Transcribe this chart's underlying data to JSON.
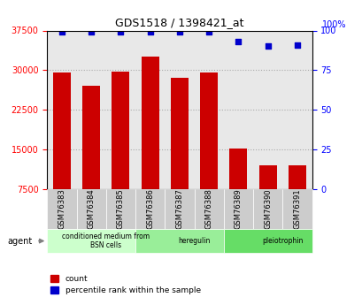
{
  "title": "GDS1518 / 1398421_at",
  "samples": [
    "GSM76383",
    "GSM76384",
    "GSM76385",
    "GSM76386",
    "GSM76387",
    "GSM76388",
    "GSM76389",
    "GSM76390",
    "GSM76391"
  ],
  "counts": [
    29500,
    27000,
    29800,
    32500,
    28500,
    29600,
    15200,
    12000,
    12000
  ],
  "percentiles": [
    99,
    99,
    99,
    99,
    99,
    99,
    93,
    90,
    91
  ],
  "ylim_left": [
    7500,
    37500
  ],
  "ylim_right": [
    0,
    100
  ],
  "yticks_left": [
    7500,
    15000,
    22500,
    30000,
    37500
  ],
  "yticks_right": [
    0,
    25,
    50,
    75,
    100
  ],
  "bar_color": "#cc0000",
  "dot_color": "#0000cc",
  "groups": [
    {
      "label": "conditioned medium from\nBSN cells",
      "start": 0,
      "end": 3,
      "color": "#ccffcc"
    },
    {
      "label": "heregulin",
      "start": 3,
      "end": 6,
      "color": "#99ee99"
    },
    {
      "label": "pleiotrophin",
      "start": 6,
      "end": 9,
      "color": "#66dd66"
    }
  ],
  "agent_label": "agent",
  "legend_count_label": "count",
  "legend_pct_label": "percentile rank within the sample",
  "bar_width": 0.6,
  "grid_color": "#aaaaaa",
  "bg_plot": "#e8e8e8",
  "bg_label_row": "#cccccc"
}
